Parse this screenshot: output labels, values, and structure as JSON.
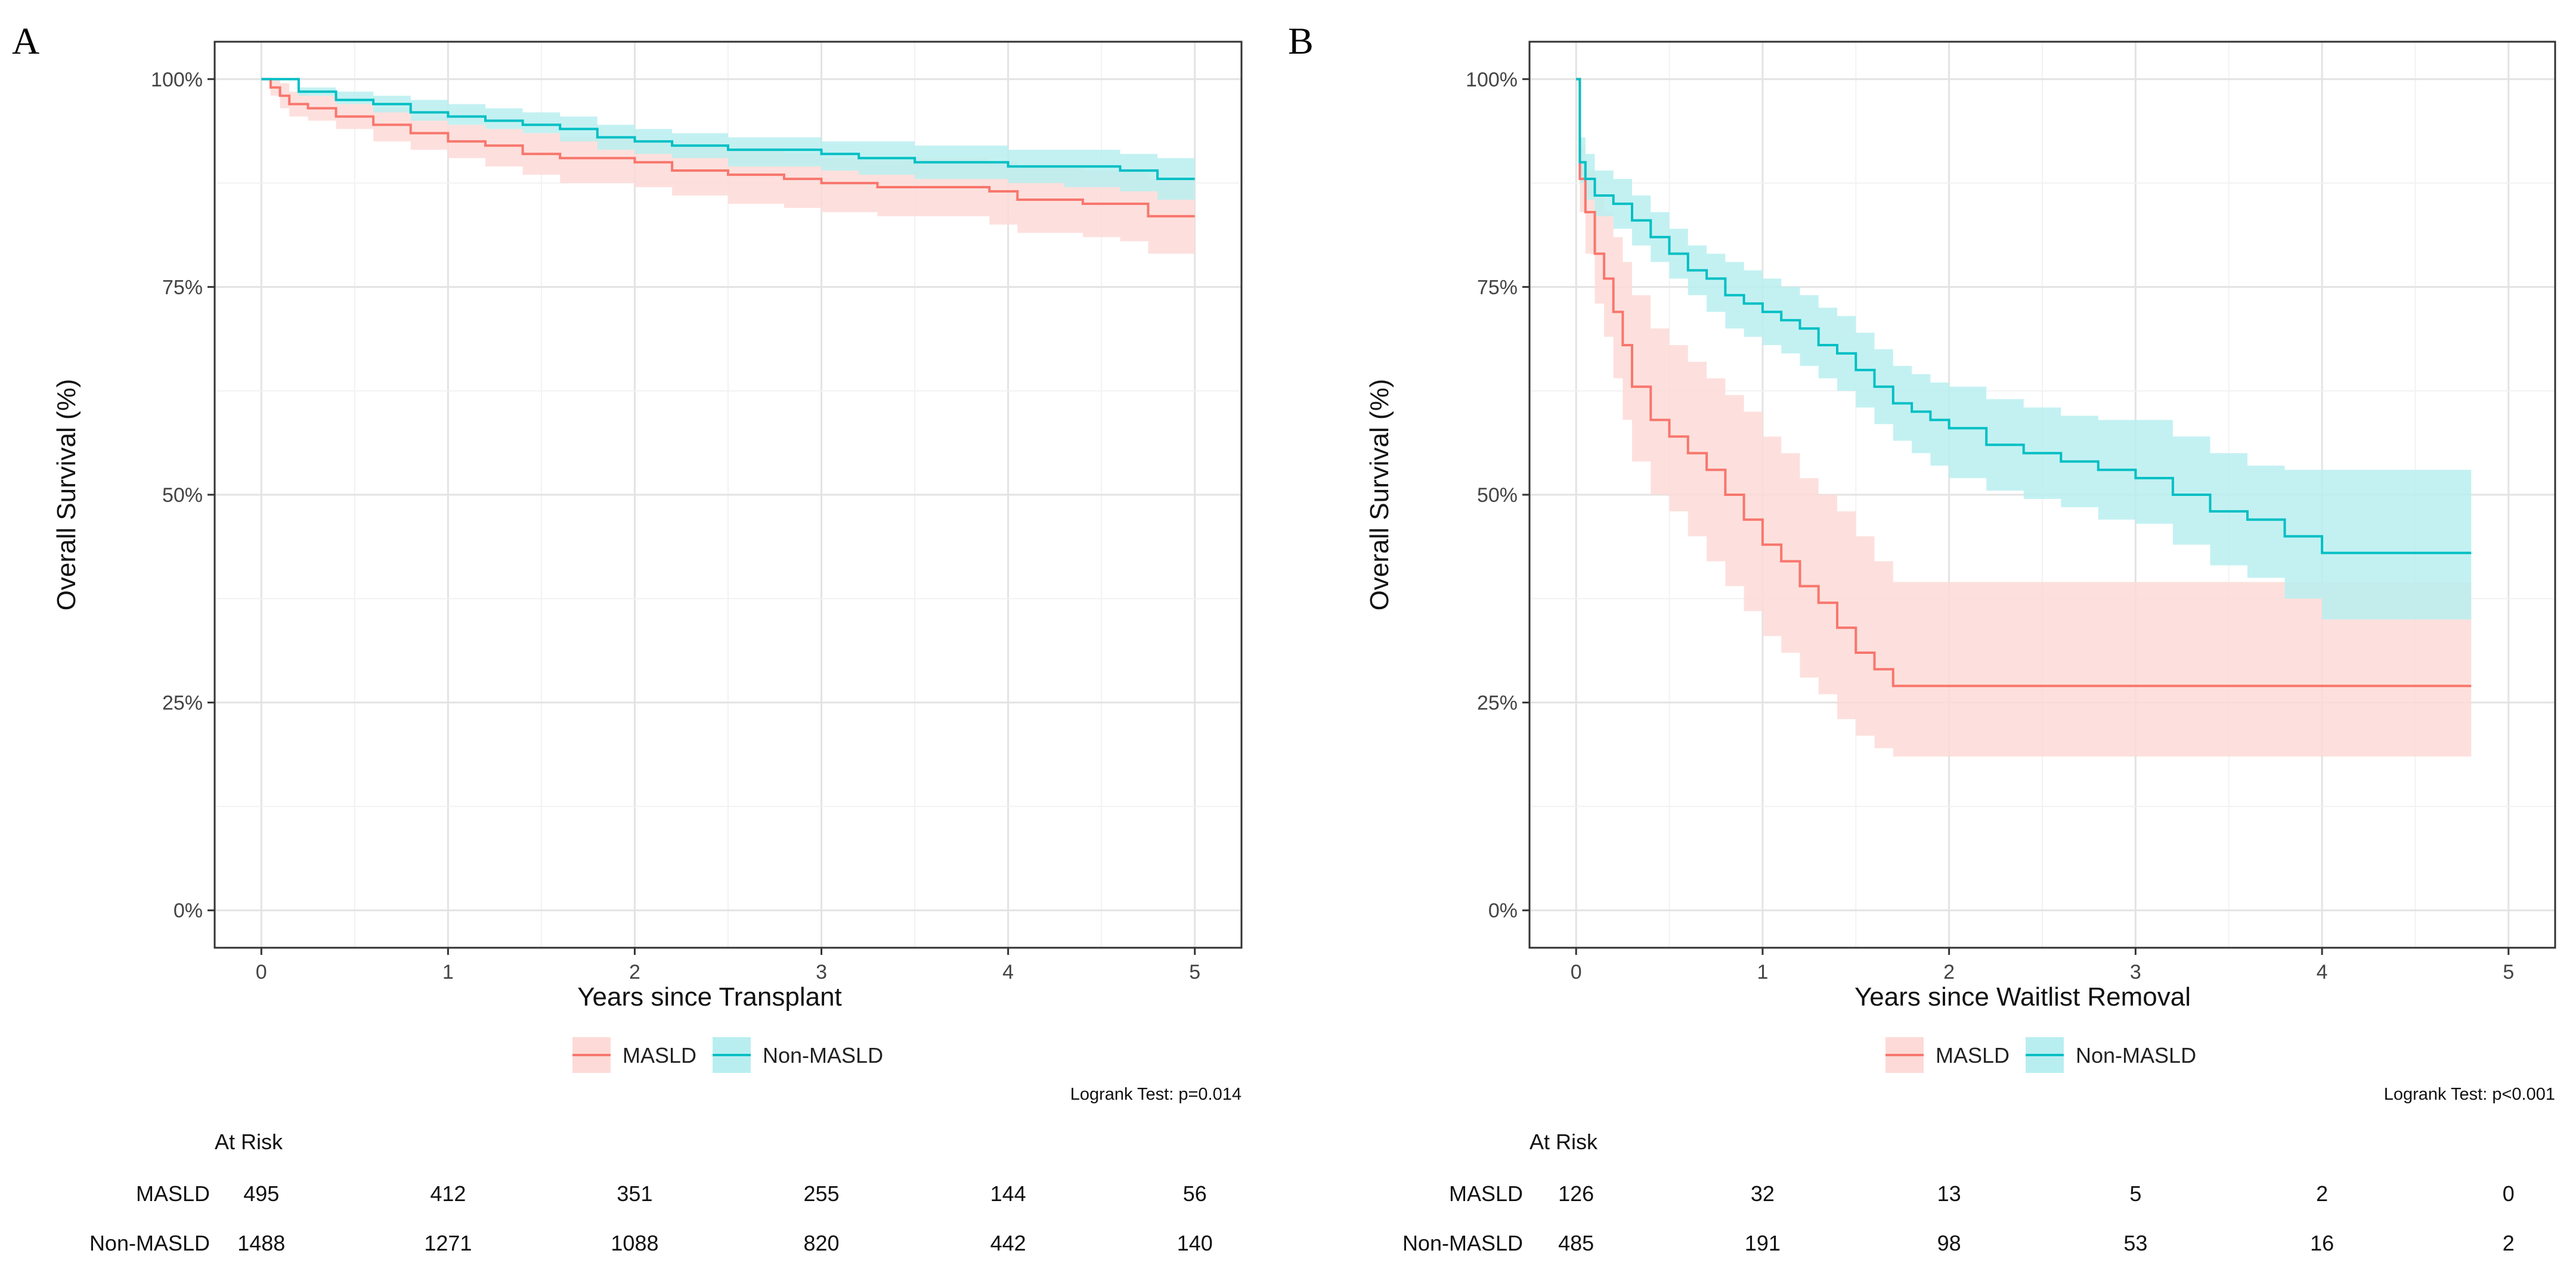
{
  "chart_data": [
    {
      "type": "line",
      "panel": "A",
      "xlabel": "Years since Transplant",
      "ylabel": "Overall Survival (%)",
      "xlim": [
        -0.25,
        5.25
      ],
      "ylim": [
        -4.5,
        104.5
      ],
      "x_ticks": [
        0,
        1,
        2,
        3,
        4,
        5
      ],
      "x_tick_labels": [
        "0",
        "1",
        "2",
        "3",
        "4",
        "5"
      ],
      "y_ticks": [
        0,
        25,
        50,
        75,
        100
      ],
      "y_tick_labels": [
        "0%",
        "25%",
        "50%",
        "75%",
        "100%"
      ],
      "grid": true,
      "legend": {
        "position": "bottom",
        "entries": [
          "MASLD",
          "Non-MASLD"
        ]
      },
      "annotation": "Logrank Test: p=0.014",
      "series": [
        {
          "name": "MASLD",
          "color": "#F8766D",
          "band_color": "#FDDAD7",
          "x": [
            0,
            0.05,
            0.1,
            0.15,
            0.25,
            0.4,
            0.6,
            0.8,
            1.0,
            1.2,
            1.4,
            1.6,
            1.8,
            2.0,
            2.2,
            2.5,
            2.8,
            3.0,
            3.3,
            3.6,
            3.9,
            4.05,
            4.4,
            4.6,
            4.75,
            5.0
          ],
          "y": [
            100,
            99,
            98,
            97,
            96.5,
            95.5,
            94.5,
            93.5,
            92.5,
            92,
            91,
            90.5,
            90.5,
            90,
            89,
            88.5,
            88,
            87.5,
            87,
            87,
            86.5,
            85.5,
            85,
            85,
            83.5,
            83.5
          ],
          "lower": [
            100,
            98,
            96.5,
            95.5,
            95,
            94,
            92.5,
            91.5,
            90.5,
            89.5,
            88.5,
            87.5,
            87.5,
            87,
            86,
            85,
            84.5,
            84,
            83.5,
            83.5,
            82.5,
            81.5,
            81,
            80.5,
            79,
            79
          ],
          "upper": [
            100,
            100,
            99.5,
            98.5,
            98,
            97,
            96.5,
            95.5,
            94.5,
            94,
            93.5,
            93,
            93,
            92.5,
            92,
            91.5,
            91,
            90.5,
            90.5,
            90.5,
            90,
            89.5,
            89,
            89,
            88,
            88
          ]
        },
        {
          "name": "Non-MASLD",
          "color": "#00BFC4",
          "band_color": "#B9EEF0",
          "x": [
            0,
            0.2,
            0.4,
            0.6,
            0.8,
            1.0,
            1.2,
            1.4,
            1.6,
            1.8,
            2.0,
            2.2,
            2.5,
            2.8,
            3.0,
            3.2,
            3.5,
            3.8,
            4.0,
            4.3,
            4.6,
            4.8,
            5.0
          ],
          "y": [
            100,
            98.5,
            97.5,
            97,
            96,
            95.5,
            95,
            94.5,
            94,
            93,
            92.5,
            92,
            91.5,
            91.5,
            91,
            90.5,
            90,
            90,
            89.5,
            89.5,
            89,
            88,
            88
          ],
          "lower": [
            100,
            98,
            97,
            96,
            95,
            94.5,
            94,
            93.5,
            92.5,
            91.5,
            91,
            90.5,
            89.5,
            89.5,
            89,
            88.5,
            88,
            88,
            87.5,
            87,
            86.5,
            85.5,
            85.5
          ],
          "upper": [
            100,
            99,
            98.5,
            98,
            97.5,
            97,
            96.5,
            96,
            95.5,
            94.5,
            94,
            93.5,
            93,
            93,
            92.5,
            92.5,
            92,
            92,
            91.5,
            91.5,
            91,
            90.5,
            90.5
          ]
        }
      ],
      "risk_table": {
        "title": "At Risk",
        "times": [
          0,
          1,
          2,
          3,
          4,
          5
        ],
        "rows": [
          {
            "label": "MASLD",
            "values": [
              "495",
              "412",
              "351",
              "255",
              "144",
              "56"
            ]
          },
          {
            "label": "Non-MASLD",
            "values": [
              "1488",
              "1271",
              "1088",
              "820",
              "442",
              "140"
            ]
          }
        ]
      }
    },
    {
      "type": "line",
      "panel": "B",
      "xlabel": "Years since Waitlist Removal",
      "ylabel": "Overall Survival (%)",
      "xlim": [
        -0.25,
        5.25
      ],
      "ylim": [
        -4.5,
        104.5
      ],
      "x_ticks": [
        0,
        1,
        2,
        3,
        4,
        5
      ],
      "x_tick_labels": [
        "0",
        "1",
        "2",
        "3",
        "4",
        "5"
      ],
      "y_ticks": [
        0,
        25,
        50,
        75,
        100
      ],
      "y_tick_labels": [
        "0%",
        "25%",
        "50%",
        "75%",
        "100%"
      ],
      "grid": true,
      "legend": {
        "position": "bottom",
        "entries": [
          "MASLD",
          "Non-MASLD"
        ]
      },
      "annotation": "Logrank Test: p<0.001",
      "series": [
        {
          "name": "MASLD",
          "color": "#F8766D",
          "band_color": "#FDDAD7",
          "x": [
            0,
            0.02,
            0.05,
            0.1,
            0.15,
            0.2,
            0.25,
            0.3,
            0.4,
            0.5,
            0.6,
            0.7,
            0.8,
            0.9,
            1.0,
            1.1,
            1.2,
            1.3,
            1.4,
            1.5,
            1.6,
            1.7,
            2.0,
            2.5,
            3.0,
            3.5,
            4.0,
            4.5,
            4.8
          ],
          "y": [
            100,
            88,
            84,
            79,
            76,
            72,
            68,
            63,
            59,
            57,
            55,
            53,
            50,
            47,
            44,
            42,
            39,
            37,
            34,
            31,
            29,
            27,
            27,
            27,
            27,
            27,
            27,
            27,
            27
          ],
          "lower": [
            100,
            84,
            79,
            73,
            69,
            64,
            59,
            54,
            50,
            48,
            45,
            42,
            39,
            36,
            33,
            31,
            28,
            26,
            23,
            21,
            19.5,
            18.5,
            18.5,
            18.5,
            18.5,
            18.5,
            18.5,
            18.5,
            18.5
          ],
          "upper": [
            100,
            92,
            89,
            86,
            84,
            81,
            78,
            74,
            70,
            68,
            66,
            64,
            62,
            60,
            57,
            55,
            52,
            50,
            48,
            45,
            42,
            39.5,
            39.5,
            39.5,
            39.5,
            39.5,
            39.5,
            39.5,
            39.5
          ]
        },
        {
          "name": "Non-MASLD",
          "color": "#00BFC4",
          "band_color": "#B9EEF0",
          "x": [
            0,
            0.02,
            0.05,
            0.1,
            0.2,
            0.3,
            0.4,
            0.5,
            0.6,
            0.7,
            0.8,
            0.9,
            1.0,
            1.1,
            1.2,
            1.3,
            1.4,
            1.5,
            1.6,
            1.7,
            1.8,
            1.9,
            2.0,
            2.2,
            2.4,
            2.6,
            2.8,
            3.0,
            3.2,
            3.4,
            3.6,
            3.8,
            4.0,
            4.4,
            4.8
          ],
          "y": [
            100,
            90,
            88,
            86,
            85,
            83,
            81,
            79,
            77,
            76,
            74,
            73,
            72,
            71,
            70,
            68,
            67,
            65,
            63,
            61,
            60,
            59,
            58,
            56,
            55,
            54,
            53,
            52,
            50,
            48,
            47,
            45,
            43,
            43,
            43
          ],
          "lower": [
            100,
            87.5,
            85.5,
            83.5,
            82,
            80,
            78,
            76,
            74,
            72,
            70,
            69,
            68,
            67,
            65.5,
            64,
            62.5,
            60.5,
            58.5,
            56.5,
            55,
            53.5,
            52,
            50.5,
            49.5,
            48.5,
            47,
            46.5,
            44,
            41.5,
            40,
            37.5,
            35,
            35,
            35
          ],
          "upper": [
            100,
            93,
            91,
            89,
            88,
            86,
            84,
            82,
            80,
            79,
            78,
            77,
            76,
            75,
            74,
            72.5,
            71.5,
            69.5,
            67.5,
            65.5,
            64.5,
            63.5,
            63,
            61.5,
            60.5,
            59.5,
            59,
            59,
            57,
            55,
            53.5,
            53,
            53,
            53,
            53
          ]
        }
      ],
      "risk_table": {
        "title": "At Risk",
        "times": [
          0,
          1,
          2,
          3,
          4,
          5
        ],
        "rows": [
          {
            "label": "MASLD",
            "values": [
              "126",
              "32",
              "13",
              "5",
              "2",
              "0"
            ]
          },
          {
            "label": "Non-MASLD",
            "values": [
              "485",
              "191",
              "98",
              "53",
              "16",
              "2"
            ]
          }
        ]
      }
    }
  ],
  "panels": [
    {
      "letter": "A"
    },
    {
      "letter": "B"
    }
  ]
}
